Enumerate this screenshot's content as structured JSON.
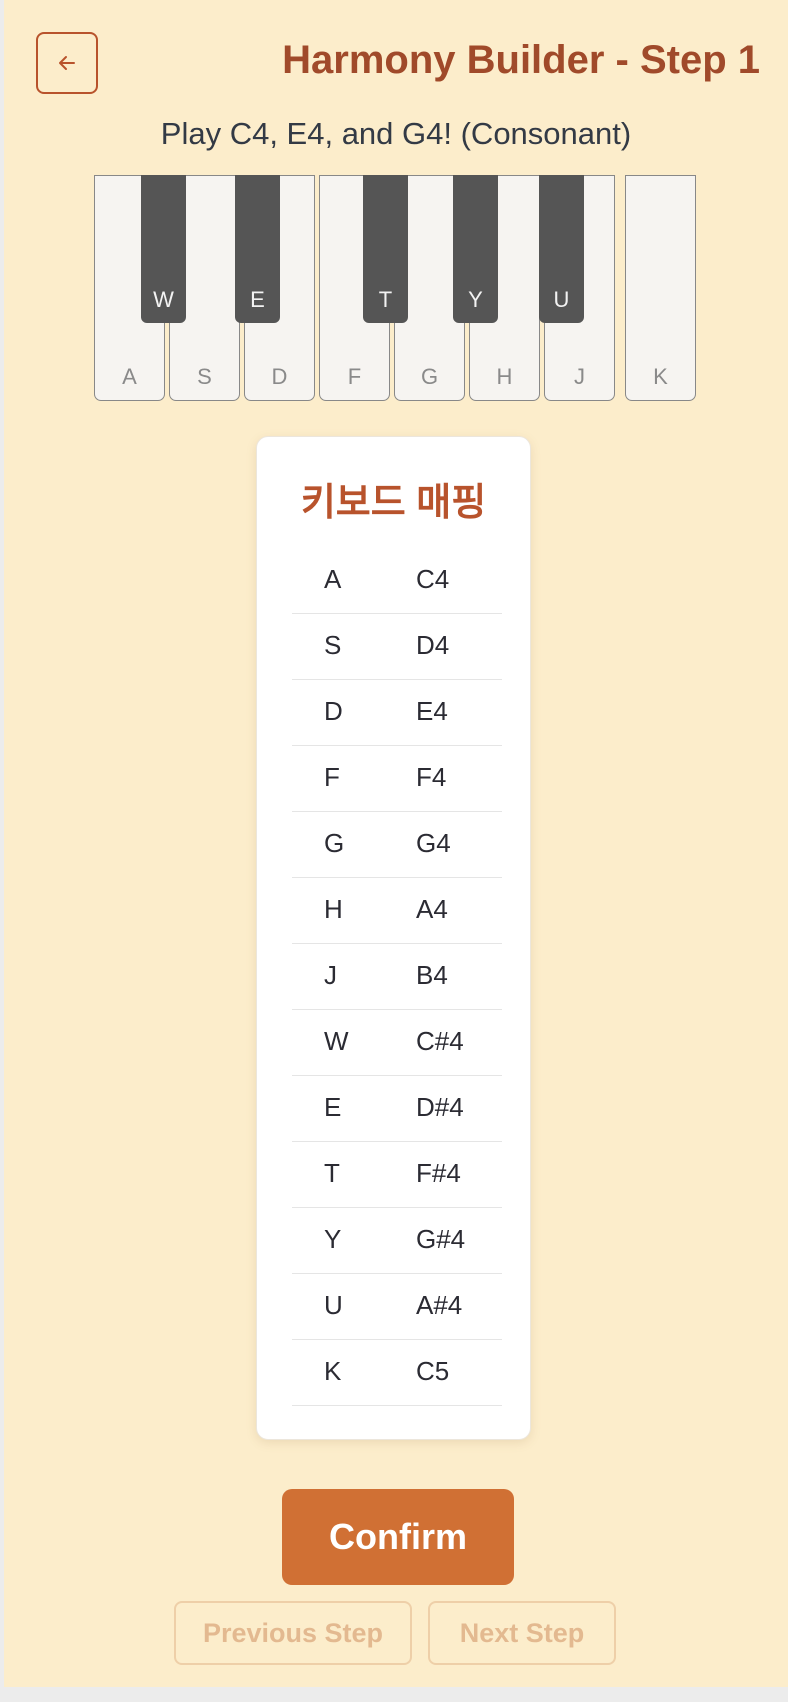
{
  "header": {
    "back_icon": "arrow-left-icon",
    "title": "Harmony Builder - Step 1"
  },
  "instruction": "Play C4, E4, and G4! (Consonant)",
  "piano": {
    "white_keys": [
      "A",
      "S",
      "D",
      "F",
      "G",
      "H",
      "J",
      "K"
    ],
    "black_keys": [
      "W",
      "E",
      "T",
      "Y",
      "U"
    ]
  },
  "mapping": {
    "title": "키보드 매핑",
    "rows": [
      {
        "key": "A",
        "note": "C4"
      },
      {
        "key": "S",
        "note": "D4"
      },
      {
        "key": "D",
        "note": "E4"
      },
      {
        "key": "F",
        "note": "F4"
      },
      {
        "key": "G",
        "note": "G4"
      },
      {
        "key": "H",
        "note": "A4"
      },
      {
        "key": "J",
        "note": "B4"
      },
      {
        "key": "W",
        "note": "C#4"
      },
      {
        "key": "E",
        "note": "D#4"
      },
      {
        "key": "T",
        "note": "F#4"
      },
      {
        "key": "Y",
        "note": "G#4"
      },
      {
        "key": "U",
        "note": "A#4"
      },
      {
        "key": "K",
        "note": "C5"
      }
    ]
  },
  "actions": {
    "confirm": "Confirm",
    "previous": "Previous Step",
    "next": "Next Step"
  },
  "colors": {
    "background": "#fcedcb",
    "accent": "#d07034",
    "title": "#a04a2a"
  }
}
